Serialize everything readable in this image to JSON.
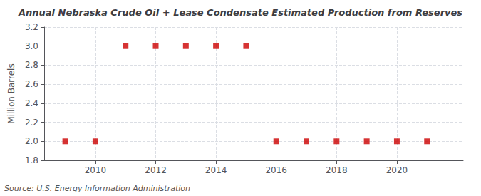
{
  "chart_data": {
    "type": "scatter",
    "title": "Annual Nebraska Crude Oil + Lease Condensate Estimated Production from Reserves",
    "ylabel": "Million Barrels",
    "annotation": "Source: U.S. Energy Information Administration",
    "x": [
      2009,
      2010,
      2011,
      2012,
      2013,
      2014,
      2015,
      2016,
      2017,
      2018,
      2019,
      2020,
      2021
    ],
    "values": [
      2.0,
      2.0,
      3.0,
      3.0,
      3.0,
      3.0,
      3.0,
      2.0,
      2.0,
      2.0,
      2.0,
      2.0,
      2.0
    ],
    "color": "#cc0000",
    "marker": "square",
    "xlim": [
      2008.3,
      2022.2
    ],
    "xticks": [
      2010,
      2012,
      2014,
      2016,
      2018,
      2020
    ],
    "ylim": [
      1.8,
      3.2
    ],
    "yticks": [
      1.8,
      {
        "value": 2.0,
        "label": "2.0"
      },
      2.2,
      2.4,
      2.6,
      2.8,
      {
        "value": 3.0,
        "label": "3.0"
      },
      3.2
    ],
    "grid": true
  }
}
